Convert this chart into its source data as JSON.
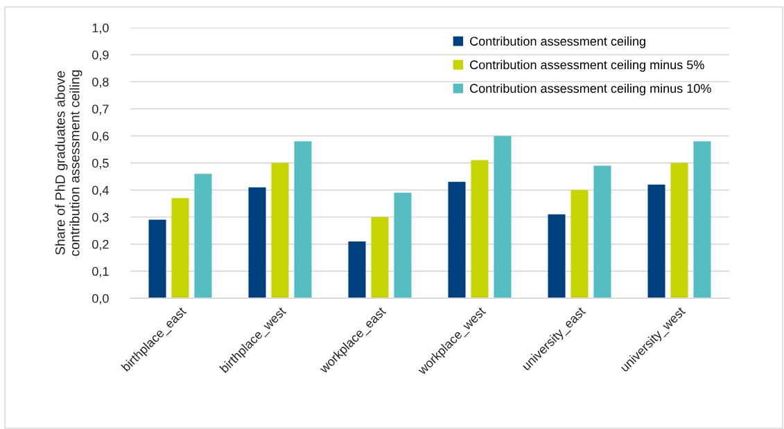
{
  "chart_data": {
    "type": "bar",
    "ylabel": "Share of PhD graduates above\ncontribution assessment ceiling",
    "categories": [
      "birthplace_east",
      "birthplace_west",
      "workplace_east",
      "workplace_west",
      "university_east",
      "university_west"
    ],
    "series": [
      {
        "name": "Contribution assessment ceiling",
        "color": "#00407f",
        "values": [
          0.29,
          0.41,
          0.21,
          0.43,
          0.31,
          0.42
        ]
      },
      {
        "name": "Contribution assessment ceiling minus 5%",
        "color": "#c8d400",
        "values": [
          0.37,
          0.5,
          0.3,
          0.51,
          0.4,
          0.5
        ]
      },
      {
        "name": "Contribution assessment ceiling minus 10%",
        "color": "#55bcc0",
        "values": [
          0.46,
          0.58,
          0.39,
          0.6,
          0.49,
          0.58
        ]
      }
    ],
    "ylim": [
      0,
      1
    ],
    "yticks": [
      {
        "value": 0,
        "label": "0,0"
      },
      {
        "value": 0.1,
        "label": "0,1"
      },
      {
        "value": 0.2,
        "label": "0,2"
      },
      {
        "value": 0.3,
        "label": "0,3"
      },
      {
        "value": 0.4,
        "label": "0,4"
      },
      {
        "value": 0.5,
        "label": "0,5"
      },
      {
        "value": 0.6,
        "label": "0,6"
      },
      {
        "value": 0.7,
        "label": "0,7"
      },
      {
        "value": 0.8,
        "label": "0,8"
      },
      {
        "value": 0.9,
        "label": "0,9"
      },
      {
        "value": 1,
        "label": "1,0"
      }
    ],
    "grid": "y",
    "legend": "top right"
  }
}
